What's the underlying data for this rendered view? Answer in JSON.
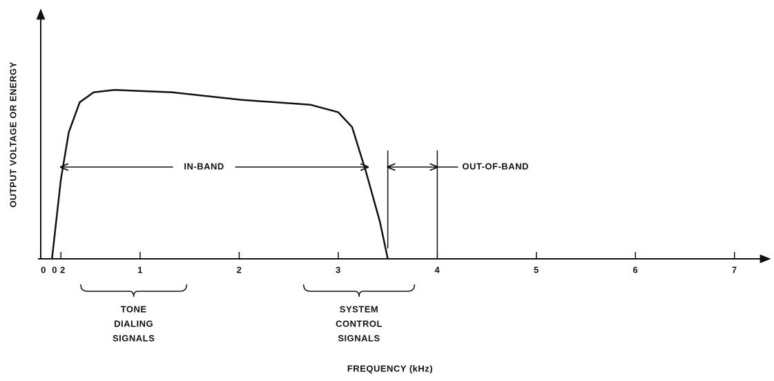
{
  "chart_data": {
    "type": "line",
    "xlabel": "FREQUENCY (kHz)",
    "ylabel": "OUTPUT VOLTAGE OR ENERGY",
    "xlim": [
      0,
      7.35
    ],
    "ylim": [
      0,
      100
    ],
    "xticks": [
      {
        "value": 0.2,
        "label": "0 2"
      },
      1,
      2,
      3,
      4,
      5,
      6,
      7
    ],
    "zero_label": "0",
    "series": [
      {
        "color": "#111111",
        "x": [
          0.11,
          0.2,
          0.28,
          0.39,
          0.53,
          0.74,
          1.33,
          2.02,
          2.72,
          3.0,
          3.14,
          3.28,
          3.42,
          3.5
        ],
        "values": [
          0,
          32,
          51,
          63,
          67,
          68,
          67,
          64,
          62,
          59,
          53,
          35,
          15,
          0
        ]
      }
    ],
    "bands": [
      {
        "label": "IN-BAND",
        "range": [
          0.2,
          3.3
        ]
      },
      {
        "label": "OUT-OF-BAND",
        "range": [
          3.5,
          4
        ]
      }
    ],
    "braces": [
      {
        "lines": [
          "TONE",
          "DIALING",
          "SIGNALS"
        ],
        "range": [
          0.4,
          1.47
        ]
      },
      {
        "lines": [
          "SYSTEM",
          "CONTROL",
          "SIGNALS"
        ],
        "range": [
          2.65,
          3.77
        ]
      }
    ]
  }
}
